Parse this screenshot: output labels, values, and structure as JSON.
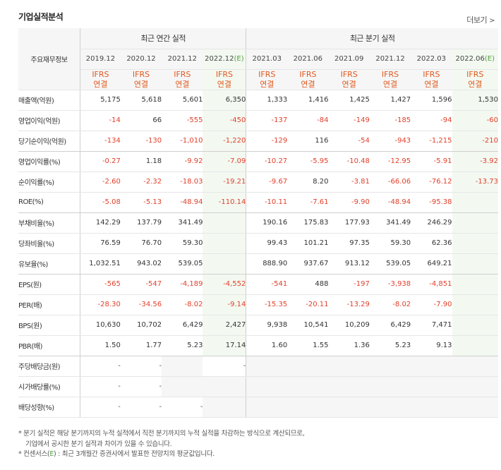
{
  "title": "기업실적분석",
  "more_label": "더보기",
  "header": {
    "rowhead": "주요재무정보",
    "annual_group": "최근 연간 실적",
    "quarter_group": "최근 분기 실적",
    "ifrs_line1": "IFRS",
    "ifrs_line2": "연결",
    "annual_periods": [
      "2019.12",
      "2020.12",
      "2021.12",
      "2022.12"
    ],
    "annual_est_mark": "(E)",
    "quarter_periods": [
      "2021.03",
      "2021.06",
      "2021.09",
      "2021.12",
      "2022.03",
      "2022.06"
    ],
    "quarter_est_mark": "(E)"
  },
  "rows": [
    {
      "label": "매출액(억원)",
      "values": [
        "5,175",
        "5,618",
        "5,601",
        "6,350",
        "1,333",
        "1,416",
        "1,425",
        "1,427",
        "1,596",
        "1,530"
      ]
    },
    {
      "label": "영업이익(억원)",
      "values": [
        "-14",
        "66",
        "-555",
        "-450",
        "-137",
        "-84",
        "-149",
        "-185",
        "-94",
        "-60"
      ]
    },
    {
      "label": "당기순이익(억원)",
      "values": [
        "-134",
        "-130",
        "-1,010",
        "-1,220",
        "-129",
        "116",
        "-54",
        "-943",
        "-1,215",
        "-210"
      ]
    },
    {
      "label": "영업이익률(%)",
      "values": [
        "-0.27",
        "1.18",
        "-9.92",
        "-7.09",
        "-10.27",
        "-5.95",
        "-10.48",
        "-12.95",
        "-5.91",
        "-3.92"
      ]
    },
    {
      "label": "순이익률(%)",
      "values": [
        "-2.60",
        "-2.32",
        "-18.03",
        "-19.21",
        "-9.67",
        "8.20",
        "-3.81",
        "-66.06",
        "-76.12",
        "-13.73"
      ]
    },
    {
      "label": "ROE(%)",
      "values": [
        "-5.08",
        "-5.13",
        "-48.94",
        "-110.14",
        "-10.11",
        "-7.61",
        "-9.90",
        "-48.94",
        "-95.38",
        ""
      ]
    },
    {
      "label": "부채비율(%)",
      "values": [
        "142.29",
        "137.79",
        "341.49",
        "",
        "190.16",
        "175.83",
        "177.93",
        "341.49",
        "246.29",
        ""
      ]
    },
    {
      "label": "당좌비율(%)",
      "values": [
        "76.59",
        "76.70",
        "59.30",
        "",
        "99.43",
        "101.21",
        "97.35",
        "59.30",
        "62.36",
        ""
      ]
    },
    {
      "label": "유보율(%)",
      "values": [
        "1,032.51",
        "943.02",
        "539.05",
        "",
        "888.90",
        "937.67",
        "913.12",
        "539.05",
        "649.21",
        ""
      ]
    },
    {
      "label": "EPS(원)",
      "values": [
        "-565",
        "-547",
        "-4,189",
        "-4,552",
        "-541",
        "488",
        "-197",
        "-3,938",
        "-4,851",
        ""
      ]
    },
    {
      "label": "PER(배)",
      "values": [
        "-28.30",
        "-34.56",
        "-8.02",
        "-9.14",
        "-15.35",
        "-20.11",
        "-13.29",
        "-8.02",
        "-7.90",
        ""
      ]
    },
    {
      "label": "BPS(원)",
      "values": [
        "10,630",
        "10,702",
        "6,429",
        "2,427",
        "9,938",
        "10,541",
        "10,209",
        "6,429",
        "7,471",
        ""
      ]
    },
    {
      "label": "PBR(배)",
      "values": [
        "1.50",
        "1.77",
        "5.23",
        "17.14",
        "1.60",
        "1.55",
        "1.36",
        "5.23",
        "9.13",
        ""
      ]
    },
    {
      "label": "주당배당금(원)",
      "values": [
        "-",
        "-",
        "",
        "-",
        "",
        "",
        "",
        "",
        "",
        ""
      ]
    },
    {
      "label": "시가배당률(%)",
      "values": [
        "-",
        "-",
        "",
        "",
        "",
        "",
        "",
        "",
        "",
        ""
      ]
    },
    {
      "label": "배당성향(%)",
      "values": [
        "-",
        "-",
        "-",
        "",
        "",
        "",
        "",
        "",
        "",
        ""
      ]
    }
  ],
  "notes": {
    "line1": "분기 실적은 해당 분기까지의 누적 실적에서 직전 분기까지의 누적 실적을 차감하는 방식으로 계산되므로,",
    "line2": "기업에서 공시한 분기 실적과 차이가 있을 수 있습니다.",
    "line3_prefix": "컨센서스(",
    "line3_mark": "E",
    "line3_suffix": ") : 최근 3개월간 증권사에서 발표한 전망치의 평균값입니다."
  },
  "colors": {
    "negative": "#e2402b",
    "ifrs": "#e15a1e",
    "estimate_bg": "#f3f9f1",
    "estimate_mark": "#55a03f",
    "header_bg": "#f6f6f6"
  }
}
